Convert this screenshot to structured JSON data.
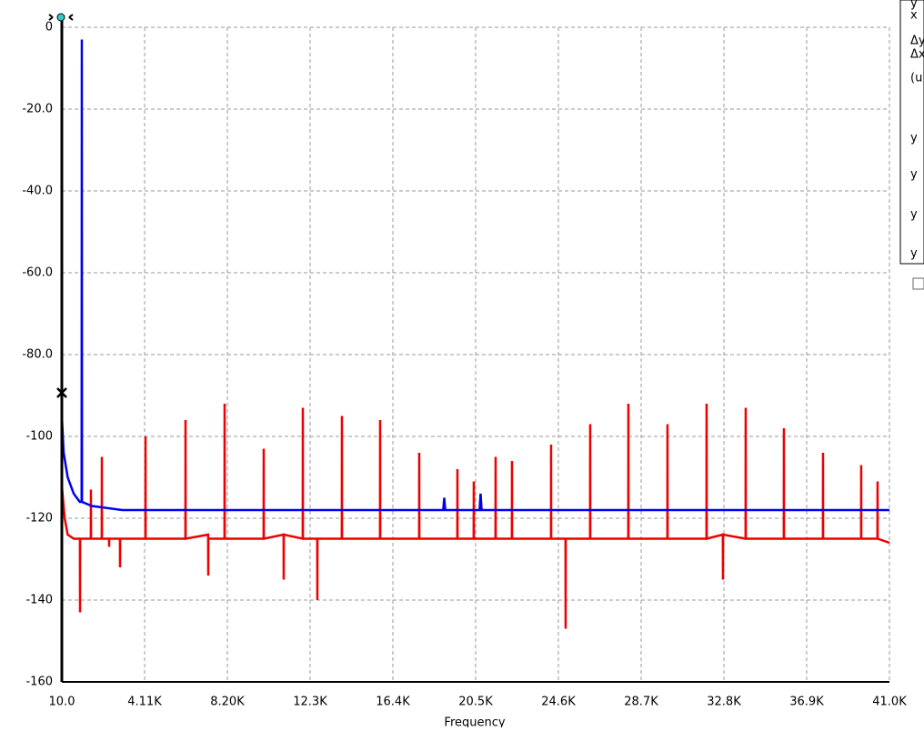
{
  "chart_data": {
    "type": "line",
    "xlabel": "Frequency",
    "xlim": [
      10,
      41000
    ],
    "xticks": [
      {
        "value": 10,
        "label": "10.0"
      },
      {
        "value": 4109,
        "label": "4.11K"
      },
      {
        "value": 8208,
        "label": "8.20K"
      },
      {
        "value": 12307,
        "label": "12.3K"
      },
      {
        "value": 16406,
        "label": "16.4K"
      },
      {
        "value": 20505,
        "label": "20.5K"
      },
      {
        "value": 24604,
        "label": "24.6K"
      },
      {
        "value": 28703,
        "label": "28.7K"
      },
      {
        "value": 32802,
        "label": "32.8K"
      },
      {
        "value": 36901,
        "label": "36.9K"
      },
      {
        "value": 41000,
        "label": "41.0K"
      }
    ],
    "ylim": [
      -160,
      0
    ],
    "yticks": [
      0,
      {
        "value": -20,
        "label": "-20.0"
      },
      {
        "value": -40,
        "label": "-40.0"
      },
      {
        "value": -60,
        "label": "-60.0"
      },
      {
        "value": -80,
        "label": "-80.0"
      },
      -100,
      -120,
      -140,
      -160
    ],
    "grid": true,
    "series": [
      {
        "color": "#0000ee",
        "x": [
          10,
          100,
          300,
          600,
          900,
          990,
          1000,
          1010,
          1500,
          3000,
          18900,
          18950,
          19000,
          20700,
          20750,
          20800,
          41000
        ],
        "values": [
          -95,
          -104,
          -110,
          -114,
          -116,
          -116,
          -3,
          -116,
          -117,
          -118,
          -118,
          -115,
          -118,
          -118,
          -114,
          -118,
          -118
        ]
      },
      {
        "color": "#ee0000",
        "x": [
          10,
          150,
          300,
          600,
          905,
          911,
          917,
          1445,
          1451,
          1457,
          1986,
          1992,
          1998,
          2346,
          2352,
          2358,
          2887,
          2893,
          2899,
          4148,
          4154,
          4160,
          6130,
          6136,
          6142,
          7256,
          7262,
          7268,
          8066,
          8072,
          8078,
          10003,
          10009,
          10015,
          10993,
          10999,
          11005,
          11940,
          11946,
          11952,
          12660,
          12666,
          12672,
          13877,
          13883,
          13889,
          15768,
          15774,
          15780,
          17705,
          17711,
          17717,
          19597,
          19603,
          19609,
          20407,
          20413,
          20419,
          21488,
          21494,
          21500,
          22299,
          22305,
          22311,
          24236,
          24242,
          24248,
          24956,
          24962,
          24968,
          26172,
          26178,
          26184,
          28064,
          28070,
          28076,
          30001,
          30007,
          30013,
          31938,
          31944,
          31950,
          32749,
          32755,
          32761,
          33875,
          33881,
          33887,
          35767,
          35773,
          35779,
          37704,
          37710,
          37716,
          39595,
          39601,
          39607,
          40406,
          40412,
          40418,
          41000
        ],
        "values": [
          -112,
          -120,
          -124,
          -125,
          -125,
          -143,
          -125,
          -125,
          -113,
          -125,
          -125,
          -105,
          -125,
          -125,
          -127,
          -125,
          -125,
          -132,
          -125,
          -125,
          -100,
          -125,
          -125,
          -96,
          -125,
          -124,
          -134,
          -125,
          -125,
          -92,
          -125,
          -125,
          -103,
          -125,
          -124,
          -135,
          -124,
          -125,
          -93,
          -125,
          -125,
          -140,
          -125,
          -125,
          -95,
          -125,
          -125,
          -96,
          -125,
          -125,
          -104,
          -125,
          -125,
          -108,
          -125,
          -125,
          -111,
          -125,
          -125,
          -105,
          -125,
          -125,
          -106,
          -125,
          -125,
          -102,
          -125,
          -125,
          -147,
          -125,
          -125,
          -97,
          -125,
          -125,
          -92,
          -125,
          -125,
          -97,
          -125,
          -125,
          -92,
          -125,
          -124,
          -135,
          -124,
          -125,
          -93,
          -125,
          -125,
          -98,
          -125,
          -125,
          -104,
          -125,
          -125,
          -107,
          -125,
          -125,
          -111,
          -125,
          -126
        ]
      }
    ]
  },
  "cursor_panel": {
    "rows": [
      "y",
      "x",
      "Δy",
      "Δx",
      "(u",
      "y",
      "y",
      "y",
      "y"
    ]
  }
}
